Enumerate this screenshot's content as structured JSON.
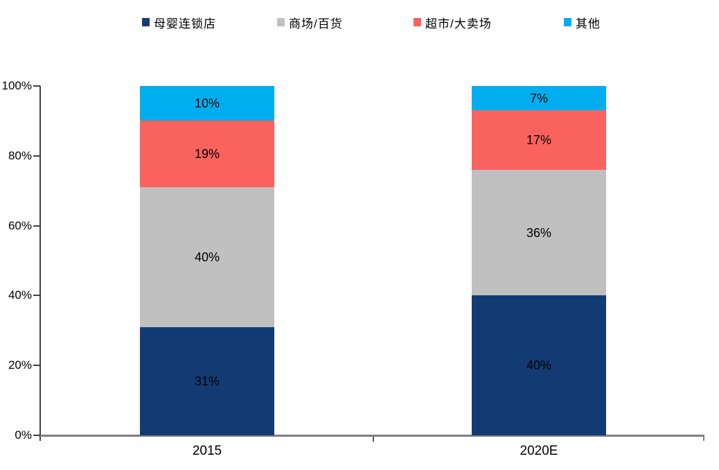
{
  "legend": {
    "items": [
      {
        "label": "母婴连锁店",
        "color": "#133B73"
      },
      {
        "label": "商场/百货",
        "color": "#C0C0C0"
      },
      {
        "label": "超市/大卖场",
        "color": "#FA625E"
      },
      {
        "label": "其他",
        "color": "#00AEEF"
      }
    ]
  },
  "chart_data": {
    "type": "bar",
    "stacked": true,
    "title": "",
    "xlabel": "",
    "ylabel": "",
    "categories": [
      "2015",
      "2020E"
    ],
    "series": [
      {
        "name": "母婴连锁店",
        "color": "#133B73",
        "values": [
          31,
          40
        ]
      },
      {
        "name": "商场/百货",
        "color": "#C0C0C0",
        "values": [
          40,
          36
        ]
      },
      {
        "name": "超市/大卖场",
        "color": "#FA625E",
        "values": [
          19,
          17
        ]
      },
      {
        "name": "其他",
        "color": "#00AEEF",
        "values": [
          10,
          7
        ]
      }
    ],
    "data_labels": {
      "2015": [
        "31%",
        "40%",
        "19%",
        "10%"
      ],
      "2020E": [
        "40%",
        "36%",
        "17%",
        "7%"
      ]
    },
    "y_ticks": [
      "0%",
      "20%",
      "40%",
      "60%",
      "80%",
      "100%"
    ],
    "ylim": [
      0,
      100
    ],
    "grid": false,
    "legend_position": "top",
    "axis_colors": {
      "y_axis": "#404040",
      "x_axis": "#7F7F7F"
    },
    "label_color": "#000000"
  }
}
